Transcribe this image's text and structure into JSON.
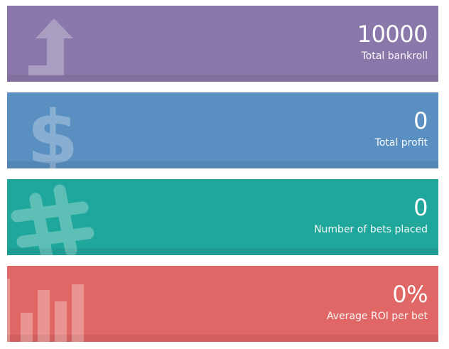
{
  "stats": [
    {
      "value": "10000",
      "label": "Total bankroll",
      "icon": "arrow-up-icon",
      "color": "#8a78ab"
    },
    {
      "value": "0",
      "label": "Total profit",
      "icon": "dollar-icon",
      "color": "#5a8fc1"
    },
    {
      "value": "0",
      "label": "Number of bets placed",
      "icon": "hashtag-icon",
      "color": "#1fa79c"
    },
    {
      "value": "0%",
      "label": "Average ROI per bet",
      "icon": "bar-chart-icon",
      "color": "#e06766"
    }
  ],
  "icons": {
    "bankroll": "$",
    "bets": "#"
  }
}
